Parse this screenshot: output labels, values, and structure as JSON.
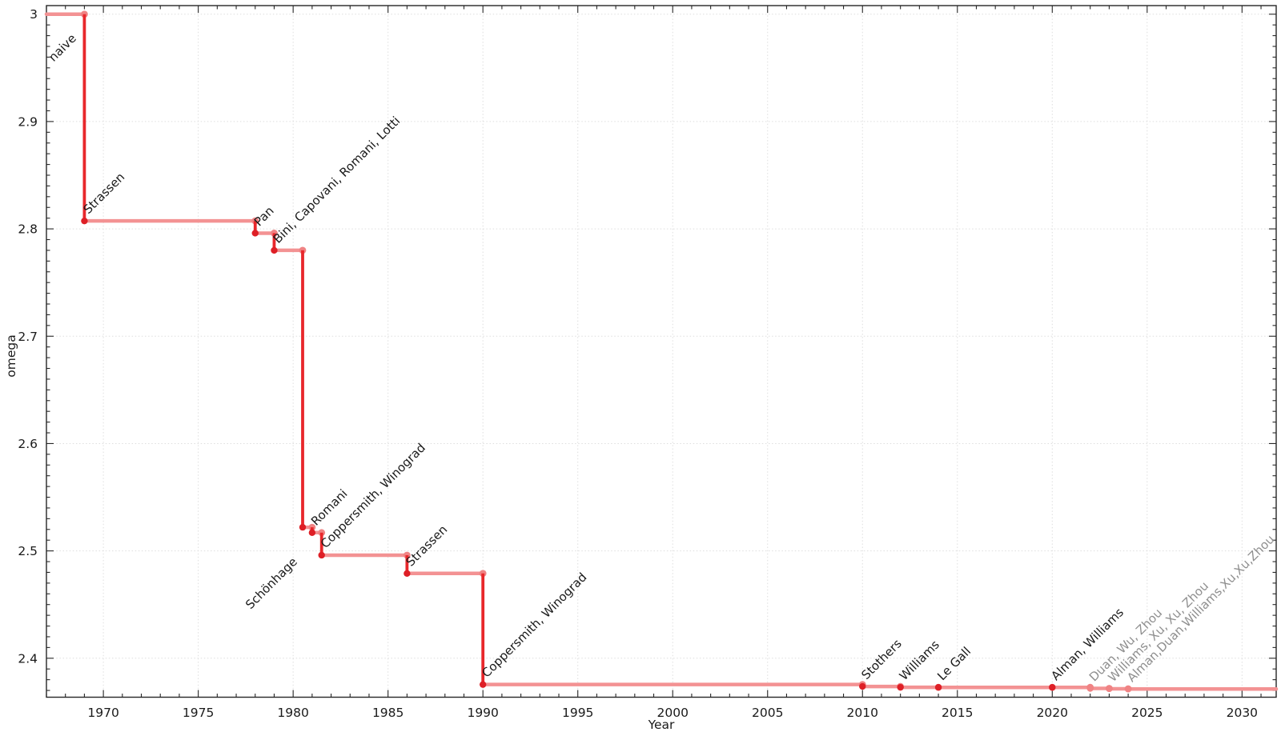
{
  "figure": {
    "background": "#ffffff"
  },
  "chart_data": {
    "type": "line",
    "step": "post",
    "title": "",
    "xlabel": "Year",
    "ylabel": "omega",
    "xlim": [
      1967.0,
      2031.8
    ],
    "ylim": [
      2.3637,
      3.008
    ],
    "x_major_ticks": [
      1970,
      1975,
      1980,
      1985,
      1990,
      1995,
      2000,
      2005,
      2010,
      2015,
      2020,
      2025,
      2030
    ],
    "x_tick_labels": [
      "1970",
      "1975",
      "1980",
      "1985",
      "1990",
      "1995",
      "2000",
      "2005",
      "2010",
      "2015",
      "2020",
      "2025",
      "2030"
    ],
    "x_minor_step": 1,
    "y_major_ticks": [
      2.4,
      2.5,
      2.6,
      2.7,
      2.8,
      2.9,
      3.0
    ],
    "y_tick_labels": [
      "2.4",
      "2.5",
      "2.6",
      "2.7",
      "2.8",
      "2.9",
      "3"
    ],
    "y_minor_step": 0.01,
    "grid": {
      "show": true,
      "style": "dotted",
      "on": "major",
      "color": "#dedede"
    },
    "legend": null,
    "colors": {
      "step_horizontal": "#f39293",
      "step_vertical": "#e8272b",
      "corner_marker": "#f08384",
      "record_marker": "#de1f26",
      "muted_marker": "#f08384",
      "label": "#1a1a1a",
      "muted_label": "#8e8e8e",
      "axis": "#262626",
      "tick_label": "#1a1a1a"
    },
    "label_rotation_deg": -45,
    "default_label_offset": [
      5,
      -8
    ],
    "points": [
      {
        "label": "naive",
        "year": null,
        "start": true,
        "omega": 3.0,
        "label_offset": [
          9,
          60
        ]
      },
      {
        "label": "Strassen",
        "year": 1969,
        "omega": 2.8074
      },
      {
        "label": "Pan",
        "year": 1978,
        "omega": 2.796
      },
      {
        "label": "Bini, Capovani, Romani, Lotti",
        "year": 1979,
        "omega": 2.78
      },
      {
        "label": "Schönhage",
        "year": 1980.5,
        "omega": 2.522,
        "label_offset": [
          -65,
          103
        ]
      },
      {
        "label": "Romani",
        "year": 1981.0,
        "omega": 2.517
      },
      {
        "label": "Coppersmith, Winograd",
        "year": 1981.5,
        "omega": 2.496
      },
      {
        "label": "Strassen",
        "year": 1986,
        "omega": 2.479
      },
      {
        "label": "Coppersmith, Winograd",
        "year": 1990,
        "omega": 2.3755
      },
      {
        "label": "Stothers",
        "year": 2010,
        "omega": 2.3737
      },
      {
        "label": "Williams",
        "year": 2012,
        "omega": 2.3729
      },
      {
        "label": "Le Gall",
        "year": 2014,
        "omega": 2.3728639
      },
      {
        "label": "Alman, Williams",
        "year": 2020,
        "omega": 2.3728596
      },
      {
        "label": "Duan, Wu, Zhou",
        "year": 2022,
        "omega": 2.371866,
        "muted": true
      },
      {
        "label": "Williams, Xu, Xu, Zhou",
        "year": 2023,
        "omega": 2.371552,
        "muted": true
      },
      {
        "label": "Alman,Duan,Williams,Xu,Xu,Zhou",
        "year": 2024,
        "omega": 2.371339,
        "muted": true
      }
    ]
  }
}
